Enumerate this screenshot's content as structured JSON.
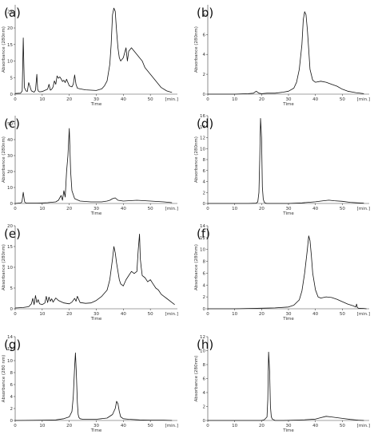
{
  "chart_data": [
    {
      "panel": "(a)",
      "type": "line",
      "xlim": [
        0,
        60
      ],
      "ylim": [
        0,
        27
      ],
      "xticks": [
        "0",
        "10",
        "20",
        "30",
        "40",
        "50"
      ],
      "yticks": [
        "0",
        "5",
        "10",
        "15",
        "20",
        "25"
      ],
      "xlabel": "Time",
      "ylabel": "Absorbance (280nm)",
      "xunit": "[min.]",
      "series": [
        {
          "x": [
            0,
            2,
            2.6,
            3,
            3.4,
            4,
            4.5,
            5,
            6,
            7,
            7.5,
            8,
            8.3,
            8.6,
            9,
            10,
            12,
            12.5,
            13,
            13.5,
            14,
            14.5,
            15,
            15.5,
            16,
            16.5,
            17,
            17.5,
            18,
            18.5,
            19,
            20,
            21,
            21.5,
            22,
            22.5,
            23,
            24,
            26,
            28,
            30,
            32,
            33,
            34,
            35,
            35.5,
            36,
            36.5,
            37,
            37.5,
            38,
            38.5,
            39,
            40,
            41,
            41.5,
            42,
            43,
            44,
            45,
            46,
            47,
            48,
            50,
            52,
            54,
            56,
            58
          ],
          "y": [
            0.2,
            0.3,
            1,
            17,
            2,
            1,
            0.8,
            3.5,
            1,
            0.6,
            1.2,
            6,
            1.5,
            0.9,
            0.7,
            0.8,
            1.5,
            3,
            1.2,
            1.5,
            2.2,
            4,
            3,
            5.5,
            4.8,
            5.2,
            4.6,
            3.8,
            4.2,
            3.5,
            4.5,
            2.5,
            2.2,
            3,
            5.8,
            3,
            1.8,
            1.6,
            1.3,
            1.2,
            1.1,
            1.6,
            2.5,
            4,
            9,
            15,
            24,
            26,
            25,
            19,
            14,
            11,
            10,
            11,
            14,
            10,
            13,
            14,
            13,
            12,
            11,
            10,
            8,
            6,
            4,
            2,
            1,
            0.5
          ]
        }
      ]
    },
    {
      "panel": "(b)",
      "type": "line",
      "xlim": [
        0,
        60
      ],
      "ylim": [
        0,
        9
      ],
      "xticks": [
        "0",
        "10",
        "20",
        "30",
        "40",
        "50"
      ],
      "yticks": [
        "0",
        "2",
        "4",
        "6",
        "8"
      ],
      "xlabel": "Time",
      "ylabel": "Absorbance (280nm)",
      "xunit": "[min.]",
      "series": [
        {
          "x": [
            0,
            5,
            10,
            15,
            17,
            18,
            19,
            20,
            22,
            25,
            28,
            30,
            32,
            33,
            34,
            35,
            35.5,
            36,
            36.5,
            37,
            37.5,
            38,
            39,
            40,
            42,
            44,
            46,
            48,
            50,
            52,
            55,
            58
          ],
          "y": [
            0,
            0,
            0,
            0.05,
            0.1,
            0.3,
            0.1,
            0.05,
            0.1,
            0.1,
            0.2,
            0.3,
            0.6,
            1.2,
            2.5,
            5,
            7.5,
            8.3,
            8,
            6.5,
            4.5,
            2.5,
            1.4,
            1.2,
            1.3,
            1.2,
            1,
            0.8,
            0.5,
            0.3,
            0.15,
            0.05
          ]
        }
      ]
    },
    {
      "panel": "(c)",
      "type": "line",
      "xlim": [
        0,
        60
      ],
      "ylim": [
        0,
        55
      ],
      "xticks": [
        "0",
        "10",
        "20",
        "30",
        "40",
        "50"
      ],
      "yticks": [
        "0",
        "10",
        "20",
        "30",
        "40",
        "50"
      ],
      "xlabel": "Time",
      "ylabel": "Absorbance (280nm)",
      "xunit": "[min.]",
      "series": [
        {
          "x": [
            0,
            2,
            2.5,
            3,
            3.5,
            4,
            8,
            12,
            15,
            16,
            17,
            17.5,
            18,
            18.5,
            19,
            19.5,
            20,
            20.5,
            21,
            22,
            24,
            28,
            32,
            34,
            35,
            36,
            37,
            38,
            40,
            45,
            50,
            55,
            58
          ],
          "y": [
            0,
            0.3,
            1,
            7,
            1,
            0.2,
            0.2,
            0.5,
            1,
            2,
            5,
            2,
            8,
            4,
            20,
            30,
            47,
            20,
            8,
            3,
            1.5,
            1,
            1,
            1.5,
            2,
            3,
            3.5,
            2,
            1.5,
            2,
            1.5,
            1,
            0.5
          ]
        }
      ]
    },
    {
      "panel": "(d)",
      "type": "line",
      "xlim": [
        0,
        60
      ],
      "ylim": [
        0,
        16
      ],
      "xticks": [
        "0",
        "10",
        "20",
        "30",
        "40",
        "50"
      ],
      "yticks": [
        "0",
        "2",
        "4",
        "6",
        "8",
        "10",
        "12",
        "14",
        "16"
      ],
      "xlabel": "Time",
      "ylabel": "Absorbance (280nm)",
      "xunit": "[min.]",
      "series": [
        {
          "x": [
            0,
            10,
            15,
            18,
            18.6,
            19,
            19.3,
            19.6,
            20,
            20.3,
            20.6,
            21,
            21.5,
            22,
            25,
            30,
            35,
            40,
            43,
            45,
            47,
            50,
            53,
            56,
            58
          ],
          "y": [
            0,
            0,
            0,
            0.05,
            0.3,
            2,
            8,
            15.5,
            12,
            3,
            0.8,
            0.2,
            0.05,
            0,
            0,
            0,
            0.1,
            0.3,
            0.5,
            0.6,
            0.5,
            0.4,
            0.2,
            0.1,
            0.05
          ]
        }
      ]
    },
    {
      "panel": "(e)",
      "type": "line",
      "xlim": [
        0,
        60
      ],
      "ylim": [
        0,
        20
      ],
      "xticks": [
        "0",
        "10",
        "20",
        "30",
        "40",
        "50"
      ],
      "yticks": [
        "0",
        "5",
        "10",
        "15",
        "20"
      ],
      "xlabel": "Time",
      "ylabel": "Absorbance (280nm)",
      "xunit": "[min.]",
      "series": [
        {
          "x": [
            0,
            3,
            5,
            6,
            6.5,
            7,
            7.5,
            8,
            8.5,
            9,
            10,
            11,
            11.5,
            12,
            12.5,
            13,
            13.5,
            14,
            15,
            16,
            18,
            20,
            21,
            22,
            22.5,
            23,
            24,
            26,
            28,
            30,
            32,
            34,
            35,
            36,
            36.5,
            37,
            37.5,
            38,
            38.5,
            39,
            40,
            41,
            42,
            43,
            44,
            45,
            45.5,
            46,
            46.3,
            46.6,
            47,
            48,
            49,
            50,
            51,
            52,
            53,
            54,
            55,
            56,
            58,
            59
          ],
          "y": [
            0.2,
            0.3,
            0.5,
            1.2,
            2.5,
            1,
            3.2,
            1.5,
            2.2,
            1.2,
            1,
            1.4,
            3,
            1.5,
            2.8,
            1.8,
            2.4,
            1.6,
            2.6,
            2,
            1.4,
            1.2,
            1.6,
            2.5,
            1.8,
            3,
            1.5,
            1.3,
            1.4,
            2,
            3,
            4.5,
            7,
            12,
            15,
            13.5,
            11,
            9,
            7,
            6,
            5.5,
            7,
            8,
            9,
            8.5,
            9,
            14,
            18,
            12,
            10,
            8,
            7.5,
            6.5,
            7,
            6,
            5,
            4.5,
            3.5,
            3,
            2.5,
            1.5,
            1
          ]
        }
      ]
    },
    {
      "panel": "(f)",
      "type": "line",
      "xlim": [
        0,
        60
      ],
      "ylim": [
        0,
        14
      ],
      "xticks": [
        "0",
        "10",
        "20",
        "30",
        "40",
        "50"
      ],
      "yticks": [
        "0",
        "2",
        "4",
        "6",
        "8",
        "10",
        "12",
        "14"
      ],
      "xlabel": "Time",
      "ylabel": "Absorbance (280nm)",
      "xunit": "[min.]",
      "series": [
        {
          "x": [
            0,
            5,
            10,
            15,
            20,
            25,
            30,
            32,
            34,
            35,
            36,
            37,
            37.5,
            38,
            38.5,
            39,
            40,
            41,
            42,
            44,
            46,
            48,
            50,
            52,
            54,
            55,
            55.3,
            55.6,
            56,
            58,
            59
          ],
          "y": [
            0,
            0,
            0,
            0.05,
            0.1,
            0.15,
            0.3,
            0.6,
            1.5,
            3,
            6,
            10,
            12.3,
            11.5,
            9,
            6,
            3.2,
            2,
            1.8,
            2,
            1.9,
            1.6,
            1.2,
            0.8,
            0.5,
            0.3,
            0.8,
            0.2,
            0.1,
            0.05,
            0
          ]
        }
      ]
    },
    {
      "panel": "(g)",
      "type": "line",
      "xlim": [
        0,
        60
      ],
      "ylim": [
        0,
        14
      ],
      "xticks": [
        "0",
        "10",
        "20",
        "30",
        "40",
        "50"
      ],
      "yticks": [
        "0",
        "2",
        "4",
        "6",
        "8",
        "10",
        "12",
        "14"
      ],
      "xlabel": "Time",
      "ylabel": "Absorbance (280 nm)",
      "xunit": "[min.]",
      "series": [
        {
          "x": [
            0,
            10,
            15,
            18,
            20,
            21,
            21.5,
            22,
            22.3,
            22.6,
            23,
            23.3,
            23.6,
            24,
            25,
            26,
            30,
            34,
            36,
            37,
            37.5,
            38,
            38.5,
            39,
            40,
            42,
            46,
            50,
            55,
            58
          ],
          "y": [
            0,
            0.05,
            0.1,
            0.3,
            0.6,
            1.5,
            4,
            9,
            11.3,
            8,
            3,
            1,
            0.5,
            0.3,
            0.2,
            0.2,
            0.2,
            0.4,
            1,
            2,
            3.2,
            2.8,
            1.5,
            0.6,
            0.3,
            0.2,
            0.1,
            0.05,
            0.05,
            0
          ]
        }
      ]
    },
    {
      "panel": "(h)",
      "type": "line",
      "xlim": [
        0,
        60
      ],
      "ylim": [
        0,
        12
      ],
      "xticks": [
        "0",
        "10",
        "20",
        "30",
        "40",
        "50"
      ],
      "yticks": [
        "0",
        "2",
        "4",
        "6",
        "8",
        "10",
        "12"
      ],
      "xlabel": "Time",
      "ylabel": "Absorbance (280nm)",
      "xunit": "[min.]",
      "series": [
        {
          "x": [
            0,
            10,
            15,
            20,
            21,
            22,
            22.3,
            22.6,
            23,
            23.3,
            23.6,
            24,
            24.5,
            25,
            28,
            32,
            36,
            40,
            42,
            44,
            46,
            48,
            50,
            53,
            56,
            58
          ],
          "y": [
            0,
            0,
            0,
            0,
            0.1,
            0.5,
            3,
            9.8,
            7,
            2,
            0.5,
            0.2,
            0.1,
            0,
            0,
            0.05,
            0.1,
            0.2,
            0.4,
            0.6,
            0.5,
            0.4,
            0.3,
            0.15,
            0.05,
            0
          ]
        }
      ]
    }
  ]
}
